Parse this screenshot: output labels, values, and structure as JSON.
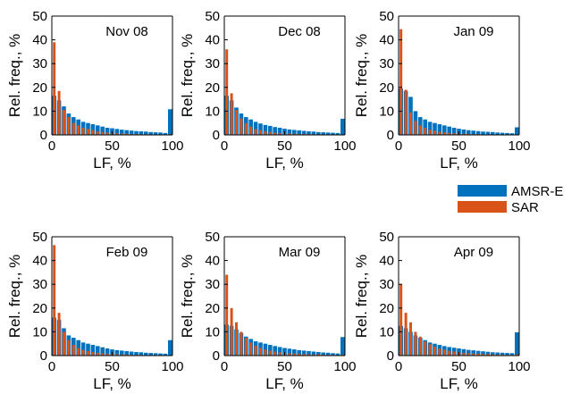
{
  "chart_data": {
    "type": "bar",
    "legend": {
      "placement": "right",
      "entries": [
        {
          "name": "AMSR-E",
          "color": "#0072BD"
        },
        {
          "name": "SAR",
          "color": "#D95319"
        }
      ]
    },
    "shared": {
      "xlabel": "LF, %",
      "ylabel": "Rel. freq., %",
      "xlim": [
        0,
        100
      ],
      "ylim": [
        0,
        50
      ],
      "xticks": [
        "0",
        "50",
        "100"
      ],
      "yticks": [
        "0",
        "10",
        "20",
        "30",
        "40",
        "50"
      ],
      "bin_centers": [
        2,
        6,
        10,
        14,
        18,
        22,
        26,
        30,
        34,
        38,
        42,
        46,
        50,
        54,
        58,
        62,
        66,
        70,
        74,
        78,
        82,
        86,
        90,
        94,
        98
      ]
    },
    "panels": [
      {
        "title": "Nov 08",
        "series": [
          {
            "name": "AMSR-E",
            "values": [
              16.5,
              14.5,
              12,
              9,
              7.5,
              6.5,
              5.5,
              5,
              4.5,
              4,
              3.5,
              3,
              2.8,
              2.5,
              2.2,
              2,
              1.8,
              1.6,
              1.5,
              1.4,
              1.2,
              1.1,
              1,
              0.8,
              10.8
            ]
          },
          {
            "name": "SAR",
            "values": [
              39,
              18.5,
              10.5,
              7.5,
              5,
              4,
              3,
              2.5,
              2,
              1.5,
              1.2,
              1,
              0.8,
              0.7,
              0.6,
              0.5,
              0.4,
              0.4,
              0.3,
              0.3,
              0.2,
              0.2,
              0.2,
              0.1,
              0.3
            ]
          }
        ]
      },
      {
        "title": "Dec 08",
        "series": [
          {
            "name": "AMSR-E",
            "values": [
              16.5,
              14.5,
              11.5,
              9,
              7.5,
              6.5,
              5.5,
              4.8,
              4.2,
              3.8,
              3.3,
              3,
              2.6,
              2.3,
              2.1,
              1.9,
              1.7,
              1.5,
              1.4,
              1.2,
              1.1,
              1,
              0.9,
              0.8,
              6.8
            ]
          },
          {
            "name": "SAR",
            "values": [
              36,
              17.5,
              10.5,
              7,
              5,
              3.5,
              2.5,
              2,
              1.6,
              1.3,
              1,
              0.8,
              0.7,
              0.6,
              0.5,
              0.4,
              0.4,
              0.3,
              0.3,
              0.2,
              0.2,
              0.2,
              0.1,
              0.1,
              0.2
            ]
          }
        ]
      },
      {
        "title": "Jan 09",
        "series": [
          {
            "name": "AMSR-E",
            "values": [
              19.5,
              18.5,
              16,
              10,
              7.5,
              6.5,
              5.5,
              5,
              4.5,
              4,
              3.5,
              3,
              2.6,
              2.3,
              2,
              1.8,
              1.6,
              1.4,
              1.3,
              1.2,
              1,
              0.9,
              0.8,
              0.7,
              3.2
            ]
          },
          {
            "name": "SAR",
            "values": [
              44.5,
              19,
              9.5,
              6,
              4,
              3,
              2.2,
              1.8,
              1.4,
              1.1,
              0.9,
              0.7,
              0.6,
              0.5,
              0.4,
              0.3,
              0.3,
              0.2,
              0.2,
              0.2,
              0.1,
              0.1,
              0.1,
              0.1,
              0.1
            ]
          }
        ]
      },
      {
        "title": "Feb 09",
        "series": [
          {
            "name": "AMSR-E",
            "values": [
              16,
              15,
              11.5,
              8.5,
              7.5,
              6.5,
              5.5,
              5,
              4.5,
              4,
              3.5,
              3,
              2.6,
              2.3,
              2.1,
              1.9,
              1.7,
              1.5,
              1.4,
              1.2,
              1.1,
              1,
              0.9,
              0.8,
              6.5
            ]
          },
          {
            "name": "SAR",
            "values": [
              46.5,
              18,
              10,
              6.5,
              4.5,
              3.2,
              2.4,
              1.9,
              1.5,
              1.2,
              1,
              0.8,
              0.7,
              0.6,
              0.5,
              0.4,
              0.4,
              0.3,
              0.3,
              0.2,
              0.2,
              0.2,
              0.1,
              0.1,
              0.2
            ]
          }
        ]
      },
      {
        "title": "Mar 09",
        "series": [
          {
            "name": "AMSR-E",
            "values": [
              13,
              12.5,
              11,
              9.5,
              8,
              7,
              6,
              5.5,
              5,
              4.5,
              4,
              3.6,
              3.2,
              2.9,
              2.6,
              2.3,
              2.1,
              1.9,
              1.7,
              1.5,
              1.3,
              1.2,
              1,
              0.9,
              7.8
            ]
          },
          {
            "name": "SAR",
            "values": [
              34,
              20,
              14,
              10,
              7.5,
              5.5,
              4.2,
              3.3,
              2.6,
              2.1,
              1.7,
              1.4,
              1.2,
              1,
              0.9,
              0.8,
              0.7,
              0.6,
              0.5,
              0.5,
              0.4,
              0.3,
              0.3,
              0.2,
              0.4
            ]
          }
        ]
      },
      {
        "title": "Apr 09",
        "series": [
          {
            "name": "AMSR-E",
            "values": [
              12.5,
              11.5,
              10,
              8.5,
              7.5,
              6.5,
              5.5,
              5,
              4.5,
              4,
              3.6,
              3.3,
              3,
              2.7,
              2.4,
              2.2,
              2,
              1.8,
              1.6,
              1.4,
              1.3,
              1.2,
              1.1,
              1,
              9.8
            ]
          },
          {
            "name": "SAR",
            "values": [
              30,
              18,
              14,
              10,
              8,
              6,
              4.8,
              3.8,
              3,
              2.5,
              2,
              1.7,
              1.4,
              1.2,
              1,
              0.9,
              0.8,
              0.7,
              0.6,
              0.5,
              0.4,
              0.4,
              0.3,
              0.3,
              0.5
            ]
          }
        ]
      }
    ]
  }
}
